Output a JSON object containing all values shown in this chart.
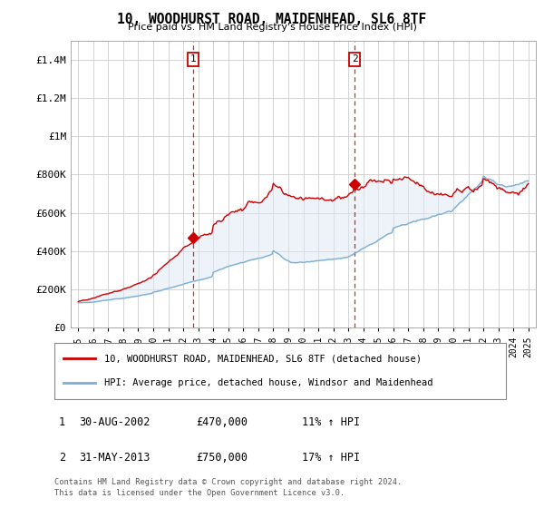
{
  "title": "10, WOODHURST ROAD, MAIDENHEAD, SL6 8TF",
  "subtitle": "Price paid vs. HM Land Registry's House Price Index (HPI)",
  "ylim": [
    0,
    1500000
  ],
  "yticks": [
    0,
    200000,
    400000,
    600000,
    800000,
    1000000,
    1200000,
    1400000
  ],
  "ytick_labels": [
    "£0",
    "£200K",
    "£400K",
    "£600K",
    "£800K",
    "£1M",
    "£1.2M",
    "£1.4M"
  ],
  "sale1_year": 2002.67,
  "sale1_price": 470000,
  "sale1_label": "1",
  "sale1_date": "30-AUG-2002",
  "sale1_hpi": "11% ↑ HPI",
  "sale2_year": 2013.42,
  "sale2_price": 750000,
  "sale2_label": "2",
  "sale2_date": "31-MAY-2013",
  "sale2_hpi": "17% ↑ HPI",
  "line_color_red": "#cc0000",
  "line_color_blue": "#7bafd4",
  "fill_color_blue": "#dce9f5",
  "grid_color": "#cccccc",
  "legend_label_red": "10, WOODHURST ROAD, MAIDENHEAD, SL6 8TF (detached house)",
  "legend_label_blue": "HPI: Average price, detached house, Windsor and Maidenhead",
  "footer1": "Contains HM Land Registry data © Crown copyright and database right 2024.",
  "footer2": "This data is licensed under the Open Government Licence v3.0.",
  "marker_box_color": "#cc0000",
  "background_color": "#ffffff",
  "xmin": 1994.5,
  "xmax": 2025.5
}
